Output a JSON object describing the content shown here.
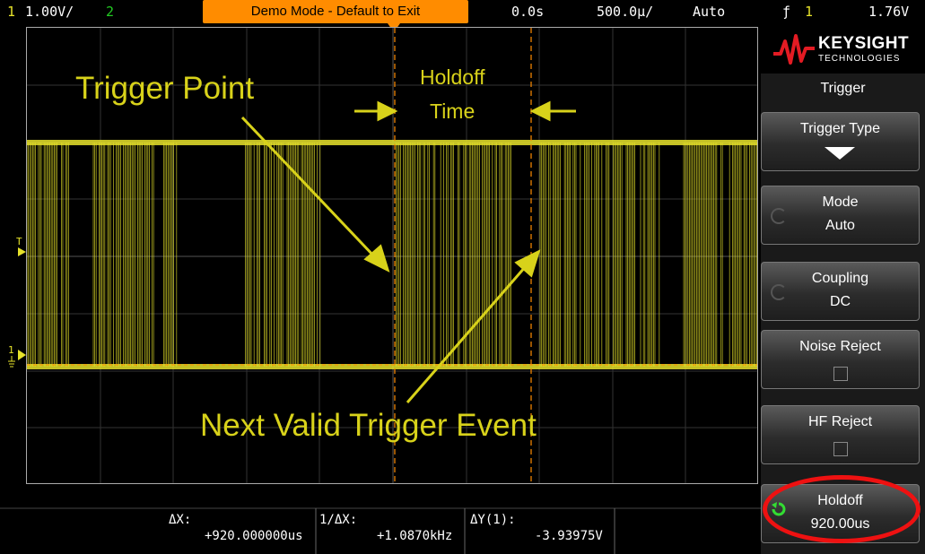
{
  "status": {
    "ch1_num": "1",
    "ch1_scale": "1.00V/",
    "ch2_num": "2",
    "demo_text": "Demo Mode - Default to Exit",
    "delay": "0.0s",
    "timebase": "500.0µ/",
    "mode": "Auto",
    "trig_slope": "ƒ",
    "trig_ch": "1",
    "trig_level": "1.76V"
  },
  "annotations": {
    "trigger_point": "Trigger Point",
    "holdoff_line1": "Holdoff",
    "holdoff_line2": "Time",
    "next_valid": "Next Valid Trigger Event"
  },
  "markers": {
    "trigger_level_marker": "T",
    "ground_marker": "1"
  },
  "measurements": {
    "dx_label": "ΔX:",
    "dx_value": "+920.000000us",
    "inv_dx_label": "1/ΔX:",
    "inv_dx_value": "+1.0870kHz",
    "dy_label": "ΔY(1):",
    "dy_value": "-3.93975V"
  },
  "panel": {
    "brand": "KEYSIGHT",
    "brand_sub": "TECHNOLOGIES",
    "title": "Trigger",
    "softkeys": [
      {
        "line1": "Trigger Type",
        "line2": ""
      },
      {
        "line1": "Mode",
        "line2": "Auto"
      },
      {
        "line1": "Coupling",
        "line2": "DC"
      },
      {
        "line1": "Noise Reject",
        "line2": ""
      },
      {
        "line1": "HF Reject",
        "line2": ""
      },
      {
        "line1": "Holdoff",
        "line2": "920.00us"
      }
    ]
  },
  "colors": {
    "channel1": "#e6e22a",
    "channel2": "#22cc22",
    "demo_banner": "#ff8c00",
    "cursor": "#ff8c00",
    "highlight": "#ee1111"
  }
}
